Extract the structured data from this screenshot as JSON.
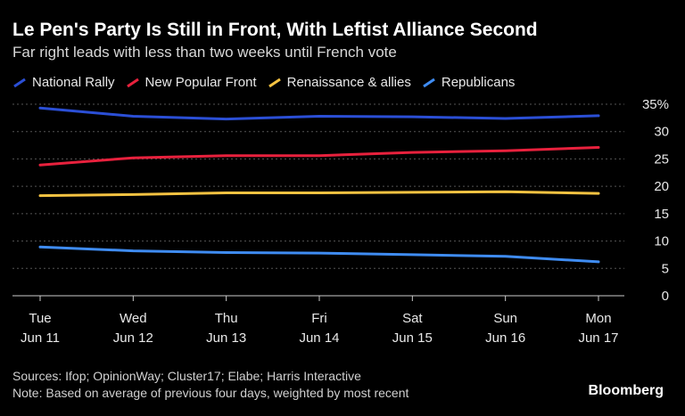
{
  "chart_data": {
    "type": "line",
    "title": "Le Pen's Party Is Still in Front, With Leftist Alliance Second",
    "subtitle": "Far right leads with less than two weeks until French vote",
    "categories": [
      {
        "day": "Tue",
        "date": "Jun 11"
      },
      {
        "day": "Wed",
        "date": "Jun 12"
      },
      {
        "day": "Thu",
        "date": "Jun 13"
      },
      {
        "day": "Fri",
        "date": "Jun 14"
      },
      {
        "day": "Sat",
        "date": "Jun 15"
      },
      {
        "day": "Sun",
        "date": "Jun 16"
      },
      {
        "day": "Mon",
        "date": "Jun 17"
      }
    ],
    "series": [
      {
        "name": "National Rally",
        "color": "#2b4fd6",
        "values": [
          34.3,
          32.8,
          32.3,
          32.8,
          32.7,
          32.4,
          32.9
        ]
      },
      {
        "name": "New Popular Front",
        "color": "#e8213d",
        "values": [
          23.9,
          25.2,
          25.6,
          25.6,
          26.2,
          26.5,
          27.1
        ]
      },
      {
        "name": "Renaissance & allies",
        "color": "#f5c342",
        "values": [
          18.3,
          18.5,
          18.8,
          18.8,
          18.9,
          19.0,
          18.7
        ]
      },
      {
        "name": "Republicans",
        "color": "#3f8cf2",
        "values": [
          8.9,
          8.2,
          7.9,
          7.8,
          7.5,
          7.2,
          6.2
        ]
      }
    ],
    "yticks": [
      "0",
      "5",
      "10",
      "15",
      "20",
      "25",
      "30",
      "35%"
    ],
    "ylim": [
      0,
      35
    ],
    "grid": true,
    "legend_position": "top"
  },
  "footer": {
    "sources": "Sources: Ifop; OpinionWay; Cluster17; Elabe; Harris Interactive",
    "note": "Note: Based on average of previous four days, weighted by most recent"
  },
  "brand": "Bloomberg"
}
